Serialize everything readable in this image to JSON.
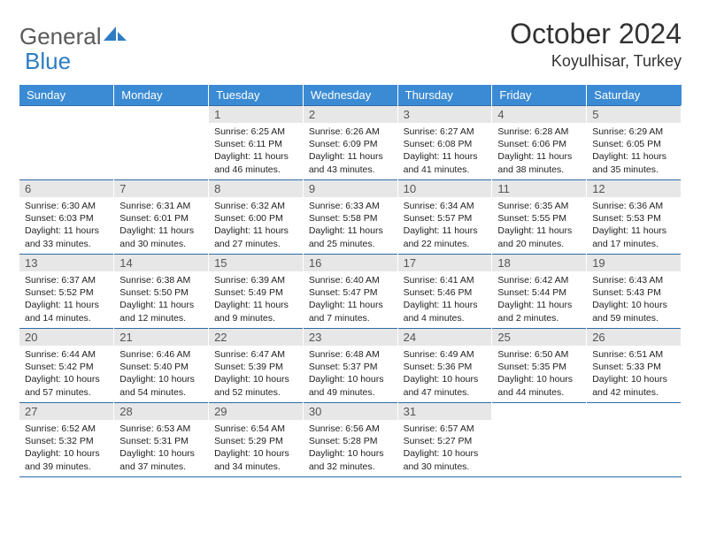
{
  "logo": {
    "general": "General",
    "blue": "Blue",
    "shape_color": "#2d7dc4"
  },
  "title": "October 2024",
  "location": "Koyulhisar, Turkey",
  "colors": {
    "header_bg": "#3b8bd4",
    "header_text": "#ffffff",
    "border": "#2d6aa8",
    "daynum_bg": "#e7e7e7",
    "daynum_text": "#555555",
    "body_text": "#222222"
  },
  "day_headers": [
    "Sunday",
    "Monday",
    "Tuesday",
    "Wednesday",
    "Thursday",
    "Friday",
    "Saturday"
  ],
  "weeks": [
    [
      null,
      null,
      {
        "n": "1",
        "sunrise": "6:25 AM",
        "sunset": "6:11 PM",
        "daylight": "11 hours and 46 minutes."
      },
      {
        "n": "2",
        "sunrise": "6:26 AM",
        "sunset": "6:09 PM",
        "daylight": "11 hours and 43 minutes."
      },
      {
        "n": "3",
        "sunrise": "6:27 AM",
        "sunset": "6:08 PM",
        "daylight": "11 hours and 41 minutes."
      },
      {
        "n": "4",
        "sunrise": "6:28 AM",
        "sunset": "6:06 PM",
        "daylight": "11 hours and 38 minutes."
      },
      {
        "n": "5",
        "sunrise": "6:29 AM",
        "sunset": "6:05 PM",
        "daylight": "11 hours and 35 minutes."
      }
    ],
    [
      {
        "n": "6",
        "sunrise": "6:30 AM",
        "sunset": "6:03 PM",
        "daylight": "11 hours and 33 minutes."
      },
      {
        "n": "7",
        "sunrise": "6:31 AM",
        "sunset": "6:01 PM",
        "daylight": "11 hours and 30 minutes."
      },
      {
        "n": "8",
        "sunrise": "6:32 AM",
        "sunset": "6:00 PM",
        "daylight": "11 hours and 27 minutes."
      },
      {
        "n": "9",
        "sunrise": "6:33 AM",
        "sunset": "5:58 PM",
        "daylight": "11 hours and 25 minutes."
      },
      {
        "n": "10",
        "sunrise": "6:34 AM",
        "sunset": "5:57 PM",
        "daylight": "11 hours and 22 minutes."
      },
      {
        "n": "11",
        "sunrise": "6:35 AM",
        "sunset": "5:55 PM",
        "daylight": "11 hours and 20 minutes."
      },
      {
        "n": "12",
        "sunrise": "6:36 AM",
        "sunset": "5:53 PM",
        "daylight": "11 hours and 17 minutes."
      }
    ],
    [
      {
        "n": "13",
        "sunrise": "6:37 AM",
        "sunset": "5:52 PM",
        "daylight": "11 hours and 14 minutes."
      },
      {
        "n": "14",
        "sunrise": "6:38 AM",
        "sunset": "5:50 PM",
        "daylight": "11 hours and 12 minutes."
      },
      {
        "n": "15",
        "sunrise": "6:39 AM",
        "sunset": "5:49 PM",
        "daylight": "11 hours and 9 minutes."
      },
      {
        "n": "16",
        "sunrise": "6:40 AM",
        "sunset": "5:47 PM",
        "daylight": "11 hours and 7 minutes."
      },
      {
        "n": "17",
        "sunrise": "6:41 AM",
        "sunset": "5:46 PM",
        "daylight": "11 hours and 4 minutes."
      },
      {
        "n": "18",
        "sunrise": "6:42 AM",
        "sunset": "5:44 PM",
        "daylight": "11 hours and 2 minutes."
      },
      {
        "n": "19",
        "sunrise": "6:43 AM",
        "sunset": "5:43 PM",
        "daylight": "10 hours and 59 minutes."
      }
    ],
    [
      {
        "n": "20",
        "sunrise": "6:44 AM",
        "sunset": "5:42 PM",
        "daylight": "10 hours and 57 minutes."
      },
      {
        "n": "21",
        "sunrise": "6:46 AM",
        "sunset": "5:40 PM",
        "daylight": "10 hours and 54 minutes."
      },
      {
        "n": "22",
        "sunrise": "6:47 AM",
        "sunset": "5:39 PM",
        "daylight": "10 hours and 52 minutes."
      },
      {
        "n": "23",
        "sunrise": "6:48 AM",
        "sunset": "5:37 PM",
        "daylight": "10 hours and 49 minutes."
      },
      {
        "n": "24",
        "sunrise": "6:49 AM",
        "sunset": "5:36 PM",
        "daylight": "10 hours and 47 minutes."
      },
      {
        "n": "25",
        "sunrise": "6:50 AM",
        "sunset": "5:35 PM",
        "daylight": "10 hours and 44 minutes."
      },
      {
        "n": "26",
        "sunrise": "6:51 AM",
        "sunset": "5:33 PM",
        "daylight": "10 hours and 42 minutes."
      }
    ],
    [
      {
        "n": "27",
        "sunrise": "6:52 AM",
        "sunset": "5:32 PM",
        "daylight": "10 hours and 39 minutes."
      },
      {
        "n": "28",
        "sunrise": "6:53 AM",
        "sunset": "5:31 PM",
        "daylight": "10 hours and 37 minutes."
      },
      {
        "n": "29",
        "sunrise": "6:54 AM",
        "sunset": "5:29 PM",
        "daylight": "10 hours and 34 minutes."
      },
      {
        "n": "30",
        "sunrise": "6:56 AM",
        "sunset": "5:28 PM",
        "daylight": "10 hours and 32 minutes."
      },
      {
        "n": "31",
        "sunrise": "6:57 AM",
        "sunset": "5:27 PM",
        "daylight": "10 hours and 30 minutes."
      },
      null,
      null
    ]
  ],
  "labels": {
    "sunrise": "Sunrise:",
    "sunset": "Sunset:",
    "daylight": "Daylight:"
  }
}
